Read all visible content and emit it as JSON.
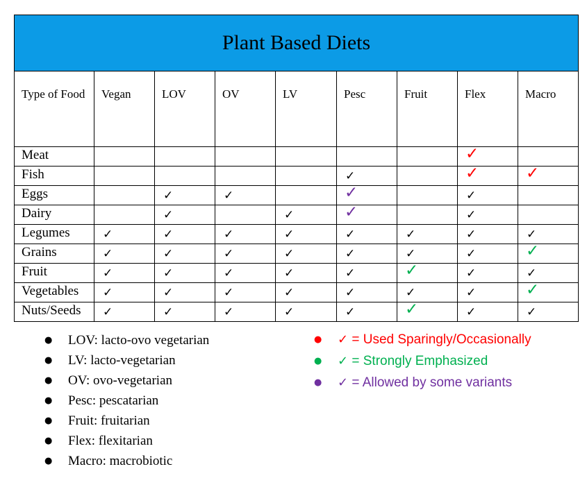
{
  "title": "Plant Based Diets",
  "columns": [
    "Type of Food",
    "Vegan",
    "LOV",
    "OV",
    "LV",
    "Pesc",
    "Fruit",
    "Flex",
    "Macro"
  ],
  "check_symbol": "✓",
  "colors": {
    "title_bg": "#0c9be6",
    "red": "#ff0000",
    "green": "#00b050",
    "purple": "#7030a0"
  },
  "rows": [
    {
      "food": "Meat",
      "marks": [
        "",
        "",
        "",
        "",
        "",
        "",
        "red",
        ""
      ]
    },
    {
      "food": "Fish",
      "marks": [
        "",
        "",
        "",
        "",
        "normal",
        "",
        "red",
        "red"
      ]
    },
    {
      "food": "Eggs",
      "marks": [
        "",
        "normal",
        "normal",
        "",
        "purple",
        "",
        "normal",
        ""
      ]
    },
    {
      "food": "Dairy",
      "marks": [
        "",
        "normal",
        "",
        "normal",
        "purple",
        "",
        "normal",
        ""
      ]
    },
    {
      "food": "Legumes",
      "marks": [
        "normal",
        "normal",
        "normal",
        "normal",
        "normal",
        "normal",
        "normal",
        "normal"
      ]
    },
    {
      "food": "Grains",
      "marks": [
        "normal",
        "normal",
        "normal",
        "normal",
        "normal",
        "normal",
        "normal",
        "green"
      ]
    },
    {
      "food": "Fruit",
      "marks": [
        "normal",
        "normal",
        "normal",
        "normal",
        "normal",
        "green",
        "normal",
        "normal"
      ]
    },
    {
      "food": "Vegetables",
      "marks": [
        "normal",
        "normal",
        "normal",
        "normal",
        "normal",
        "normal",
        "normal",
        "green"
      ]
    },
    {
      "food": "Nuts/Seeds",
      "marks": [
        "normal",
        "normal",
        "normal",
        "normal",
        "normal",
        "green",
        "normal",
        "normal"
      ]
    }
  ],
  "abbreviations": [
    "LOV: lacto-ovo vegetarian",
    "LV: lacto-vegetarian",
    "OV: ovo-vegetarian",
    "Pesc: pescatarian",
    "Fruit: fruitarian",
    "Flex: flexitarian",
    "Macro: macrobiotic"
  ],
  "key": [
    {
      "color": "red",
      "text": "= Used Sparingly/Occasionally"
    },
    {
      "color": "green",
      "text": "= Strongly Emphasized"
    },
    {
      "color": "purple",
      "text": "= Allowed by some variants"
    }
  ]
}
